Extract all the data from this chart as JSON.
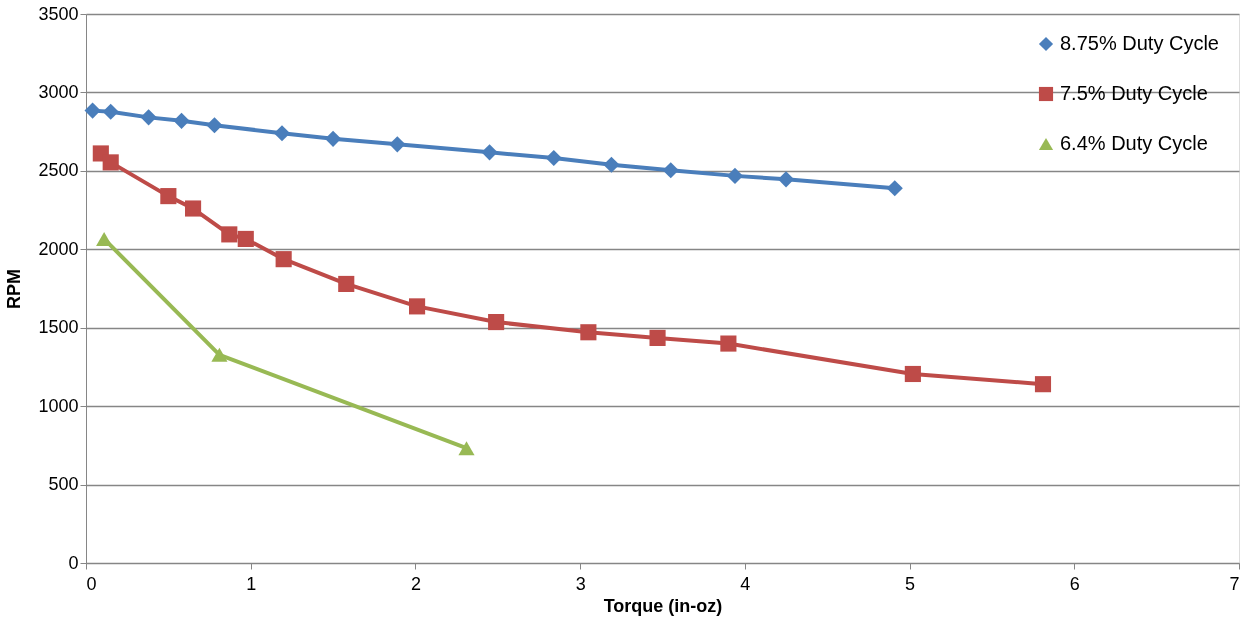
{
  "chart_data": {
    "type": "line",
    "xlabel": "Torque (in-oz)",
    "ylabel": "RPM",
    "xlim": [
      0,
      7
    ],
    "xticks": [
      0,
      1,
      2,
      3,
      4,
      5,
      6,
      7
    ],
    "ylim": [
      0,
      3500
    ],
    "yticks": [
      0,
      500,
      1000,
      1500,
      2000,
      2500,
      3000,
      3500
    ],
    "grid": "y",
    "legend": "right",
    "line_style": "solid",
    "series": [
      {
        "name": "8.75% Duty Cycle",
        "color": "#4a7ebb",
        "marker": "diamond",
        "x": [
          0.04,
          0.15,
          0.38,
          0.58,
          0.78,
          1.19,
          1.5,
          1.89,
          2.45,
          2.84,
          3.19,
          3.55,
          3.94,
          4.25,
          4.91
        ],
        "values": [
          2884,
          2877,
          2841,
          2819,
          2791,
          2740,
          2704,
          2669,
          2618,
          2582,
          2539,
          2504,
          2468,
          2446,
          2389
        ]
      },
      {
        "name": "7.5% Duty Cycle",
        "color": "#be4b48",
        "marker": "square",
        "x": [
          0.09,
          0.15,
          0.5,
          0.65,
          0.87,
          0.97,
          1.2,
          1.58,
          2.01,
          2.49,
          3.05,
          3.47,
          3.9,
          5.02,
          5.81
        ],
        "values": [
          2611,
          2554,
          2339,
          2260,
          2095,
          2066,
          1937,
          1779,
          1636,
          1536,
          1471,
          1435,
          1399,
          1205,
          1140
        ]
      },
      {
        "name": "6.4% Duty Cycle",
        "color": "#98b954",
        "marker": "triangle",
        "x": [
          0.11,
          0.81,
          2.31
        ],
        "values": [
          2066,
          1327,
          732
        ]
      }
    ]
  }
}
